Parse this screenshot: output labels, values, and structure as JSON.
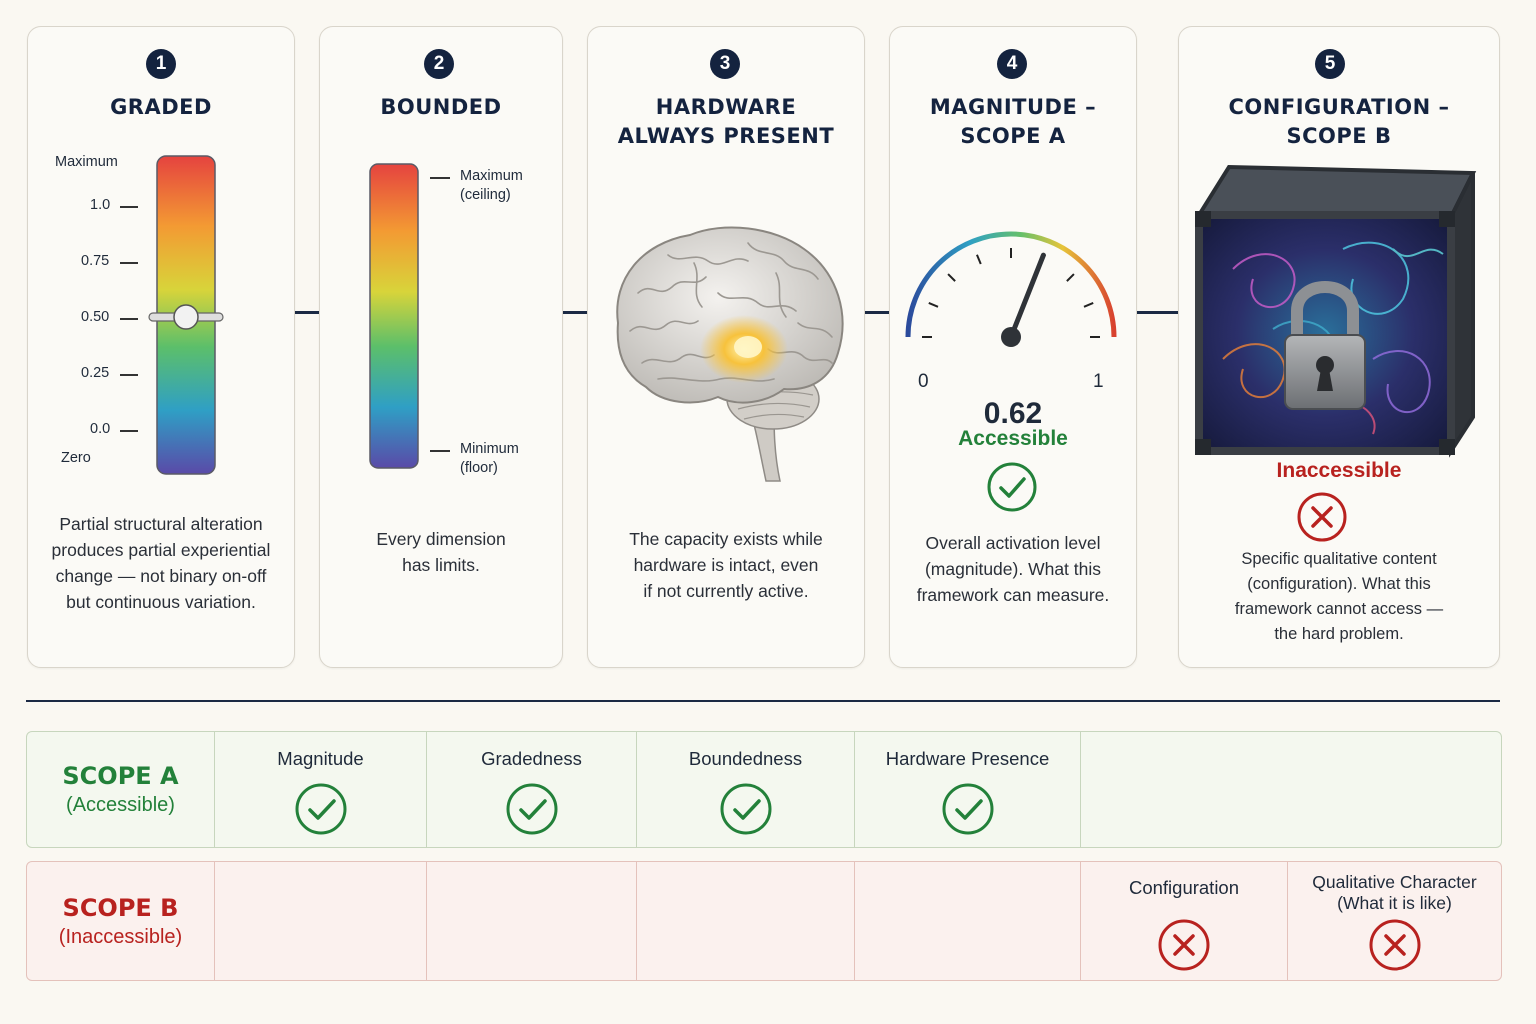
{
  "colors": {
    "navy": "#14233f",
    "accessible_green": "#23813a",
    "inaccessible_red": "#b8221f"
  },
  "cards": [
    {
      "number": "1",
      "title_lines": [
        "GRADED"
      ],
      "scale": {
        "top_label": "Maximum",
        "bottom_label": "Zero",
        "ticks": [
          "1.0",
          "0.75",
          "0.50",
          "0.25",
          "0.0"
        ],
        "slider_value": 0.5
      },
      "description": [
        "Partial structural alteration",
        "produces partial experiential",
        "change — not binary on-off",
        "but continuous variation."
      ]
    },
    {
      "number": "2",
      "title_lines": [
        "BOUNDED"
      ],
      "bar_labels": {
        "max_line1": "Maximum",
        "max_line2": "(ceiling)",
        "min_line1": "Minimum",
        "min_line2": "(floor)"
      },
      "description": [
        "Every dimension",
        "has limits."
      ]
    },
    {
      "number": "3",
      "title_lines": [
        "HARDWARE",
        "ALWAYS PRESENT"
      ],
      "icon": "brain-icon",
      "description": [
        "The capacity exists while",
        "hardware is intact, even",
        "if not currently active."
      ]
    },
    {
      "number": "4",
      "title_lines": [
        "MAGNITUDE –",
        "SCOPE A"
      ],
      "gauge": {
        "min_label": "0",
        "max_label": "1",
        "value": 0.62,
        "value_label": "0.62"
      },
      "status": "Accessible",
      "description": [
        "Overall activation level",
        "(magnitude). What this",
        "framework can measure."
      ]
    },
    {
      "number": "5",
      "title_lines": [
        "CONFIGURATION –",
        "SCOPE B"
      ],
      "icon": "locked-box-icon",
      "status": "Inaccessible",
      "description": [
        "Specific qualitative content",
        "(configuration). What this",
        "framework cannot access —",
        "the hard problem."
      ]
    }
  ],
  "table": {
    "scope_a": {
      "title": "SCOPE A",
      "subtitle": "(Accessible)",
      "items": [
        "Magnitude",
        "Gradedness",
        "Boundedness",
        "Hardware Presence"
      ]
    },
    "scope_b": {
      "title": "SCOPE B",
      "subtitle": "(Inaccessible)",
      "item1": "Configuration",
      "item2_line1": "Qualitative Character",
      "item2_line2": "(What it is like)"
    }
  }
}
